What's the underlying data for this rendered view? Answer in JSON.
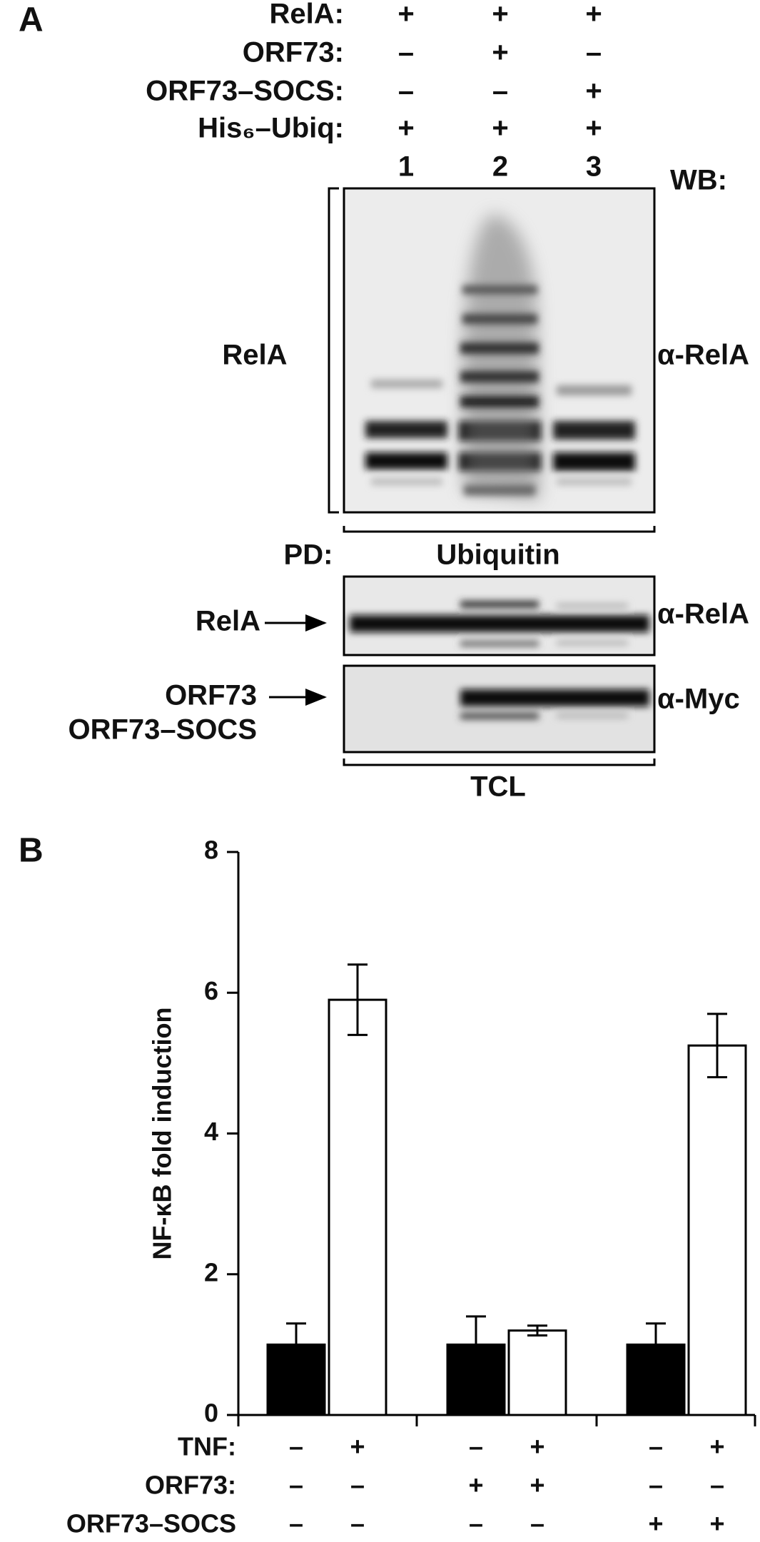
{
  "panel_a": {
    "label": "A",
    "conditions": [
      {
        "label": "RelA:",
        "signs": [
          "+",
          "+",
          "+"
        ]
      },
      {
        "label": "ORF73:",
        "signs": [
          "–",
          "+",
          "–"
        ]
      },
      {
        "label": "ORF73–SOCS:",
        "signs": [
          "–",
          "–",
          "+"
        ]
      },
      {
        "label": "His₆–Ubiq:",
        "signs": [
          "+",
          "+",
          "+"
        ]
      }
    ],
    "lanes": [
      "1",
      "2",
      "3"
    ],
    "wb": "WB:",
    "pd": "PD:",
    "pd_target": "Ubiquitin",
    "blot_labels": [
      {
        "left": [
          "RelA"
        ],
        "right": "α-RelA"
      },
      {
        "left": [
          "RelA"
        ],
        "right": "α-RelA"
      },
      {
        "left": [
          "ORF73",
          "ORF73–SOCS"
        ],
        "right": "α-Myc"
      }
    ],
    "tcl": "TCL"
  },
  "chart_data": {
    "type": "bar",
    "label": "B",
    "y_label": "NF-κB fold induction",
    "ylim": [
      0,
      8
    ],
    "yticks": [
      0,
      2,
      4,
      6,
      8
    ],
    "values": [
      1.0,
      5.9,
      1.0,
      1.2,
      1.0,
      5.25
    ],
    "errors": [
      0.3,
      0.5,
      0.4,
      0.07,
      0.3,
      0.45
    ],
    "colors": [
      "#000000",
      "#ffffff",
      "#000000",
      "#ffffff",
      "#000000",
      "#ffffff"
    ],
    "conditions": [
      {
        "label": "TNF:",
        "signs": [
          "–",
          "+",
          "–",
          "+",
          "–",
          "+"
        ]
      },
      {
        "label": "ORF73:",
        "signs": [
          "–",
          "–",
          "+",
          "+",
          "–",
          "–"
        ]
      },
      {
        "label": "ORF73–SOCS",
        "signs": [
          "–",
          "–",
          "–",
          "–",
          "+",
          "+"
        ]
      }
    ]
  }
}
